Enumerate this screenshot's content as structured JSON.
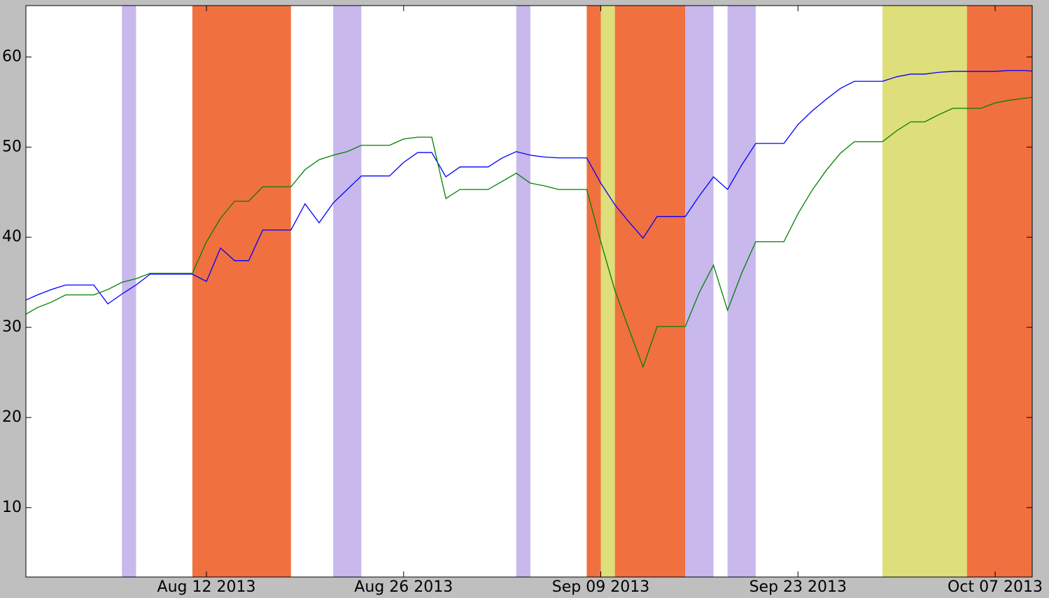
{
  "chart_data": {
    "type": "line",
    "x": [
      "2013-07-30",
      "2013-07-31",
      "2013-08-01",
      "2013-08-02",
      "2013-08-03",
      "2013-08-04",
      "2013-08-05",
      "2013-08-06",
      "2013-08-07",
      "2013-08-08",
      "2013-08-09",
      "2013-08-10",
      "2013-08-11",
      "2013-08-12",
      "2013-08-13",
      "2013-08-14",
      "2013-08-15",
      "2013-08-16",
      "2013-08-17",
      "2013-08-18",
      "2013-08-19",
      "2013-08-20",
      "2013-08-21",
      "2013-08-22",
      "2013-08-23",
      "2013-08-24",
      "2013-08-25",
      "2013-08-26",
      "2013-08-27",
      "2013-08-28",
      "2013-08-29",
      "2013-08-30",
      "2013-08-31",
      "2013-09-01",
      "2013-09-02",
      "2013-09-03",
      "2013-09-04",
      "2013-09-05",
      "2013-09-06",
      "2013-09-07",
      "2013-09-08",
      "2013-09-09",
      "2013-09-10",
      "2013-09-11",
      "2013-09-12",
      "2013-09-13",
      "2013-09-14",
      "2013-09-15",
      "2013-09-16",
      "2013-09-17",
      "2013-09-18",
      "2013-09-19",
      "2013-09-20",
      "2013-09-21",
      "2013-09-22",
      "2013-09-23",
      "2013-09-24",
      "2013-09-25",
      "2013-09-26",
      "2013-09-27",
      "2013-09-28",
      "2013-09-29",
      "2013-09-30",
      "2013-10-01",
      "2013-10-02",
      "2013-10-03",
      "2013-10-04",
      "2013-10-05",
      "2013-10-06",
      "2013-10-07",
      "2013-10-08",
      "2013-10-09",
      "2013-10-10"
    ],
    "series": [
      {
        "color": "#0000ff",
        "values": [
          32.9,
          33.6,
          34.2,
          34.7,
          34.7,
          34.7,
          32.6,
          33.7,
          34.7,
          35.9,
          35.9,
          35.9,
          35.9,
          35.1,
          38.8,
          37.4,
          37.4,
          40.8,
          40.8,
          40.8,
          43.7,
          41.6,
          43.8,
          45.3,
          46.8,
          46.8,
          46.8,
          48.3,
          49.4,
          49.4,
          46.7,
          47.8,
          47.8,
          47.8,
          48.8,
          49.5,
          49.1,
          48.9,
          48.8,
          48.8,
          48.8,
          46.0,
          43.6,
          41.7,
          39.9,
          42.3,
          42.3,
          42.3,
          44.6,
          46.7,
          45.3,
          48.0,
          50.4,
          50.4,
          50.4,
          52.5,
          54.0,
          55.3,
          56.5,
          57.3,
          57.3,
          57.3,
          57.8,
          58.1,
          58.1,
          58.3,
          58.4,
          58.4,
          58.4,
          58.4,
          58.5,
          58.5,
          58.4
        ]
      },
      {
        "color": "#008000",
        "values": [
          31.3,
          32.2,
          32.8,
          33.6,
          33.6,
          33.6,
          34.2,
          35.0,
          35.4,
          36.0,
          36.0,
          36.0,
          36.0,
          39.5,
          42.1,
          44.0,
          44.0,
          45.6,
          45.6,
          45.6,
          47.5,
          48.6,
          49.1,
          49.5,
          50.2,
          50.2,
          50.2,
          50.9,
          51.1,
          51.1,
          44.3,
          45.3,
          45.3,
          45.3,
          46.2,
          47.1,
          46.0,
          45.7,
          45.3,
          45.3,
          45.3,
          39.5,
          34.1,
          29.8,
          25.6,
          30.1,
          30.1,
          30.1,
          33.9,
          36.9,
          31.9,
          36.0,
          39.5,
          39.5,
          39.5,
          42.6,
          45.2,
          47.4,
          49.3,
          50.6,
          50.6,
          50.6,
          51.8,
          52.8,
          52.8,
          53.6,
          54.3,
          54.3,
          54.3,
          54.9,
          55.2,
          55.4,
          55.6
        ]
      }
    ],
    "spans": [
      {
        "start": "2013-08-06",
        "end": "2013-08-07",
        "color": "#c8b8ec"
      },
      {
        "start": "2013-08-11",
        "end": "2013-08-18",
        "color": "#f07040"
      },
      {
        "start": "2013-08-21",
        "end": "2013-08-23",
        "color": "#c8b8ec"
      },
      {
        "start": "2013-09-03",
        "end": "2013-09-04",
        "color": "#c8b8ec"
      },
      {
        "start": "2013-09-08",
        "end": "2013-09-09",
        "color": "#f07040"
      },
      {
        "start": "2013-09-09",
        "end": "2013-09-10",
        "color": "#dede7a"
      },
      {
        "start": "2013-09-10",
        "end": "2013-09-15",
        "color": "#f07040"
      },
      {
        "start": "2013-09-15",
        "end": "2013-09-17",
        "color": "#c8b8ec"
      },
      {
        "start": "2013-09-18",
        "end": "2013-09-20",
        "color": "#c8b8ec"
      },
      {
        "start": "2013-09-29",
        "end": "2013-10-05",
        "color": "#dede7a"
      },
      {
        "start": "2013-10-05",
        "end": "2013-10-10",
        "color": "#f07040"
      }
    ],
    "xlim": [
      "2013-07-30T04:19",
      "2013-10-09T15:09"
    ],
    "xticks": [
      {
        "value": "2013-08-12",
        "label": "Aug 12 2013"
      },
      {
        "value": "2013-08-26",
        "label": "Aug 26 2013"
      },
      {
        "value": "2013-09-09",
        "label": "Sep 09 2013"
      },
      {
        "value": "2013-09-23",
        "label": "Sep 23 2013"
      },
      {
        "value": "2013-10-07",
        "label": "Oct 07 2013"
      }
    ],
    "ylim": [
      2.3,
      65.7
    ],
    "yticks": [
      10,
      20,
      30,
      40,
      50,
      60
    ]
  }
}
